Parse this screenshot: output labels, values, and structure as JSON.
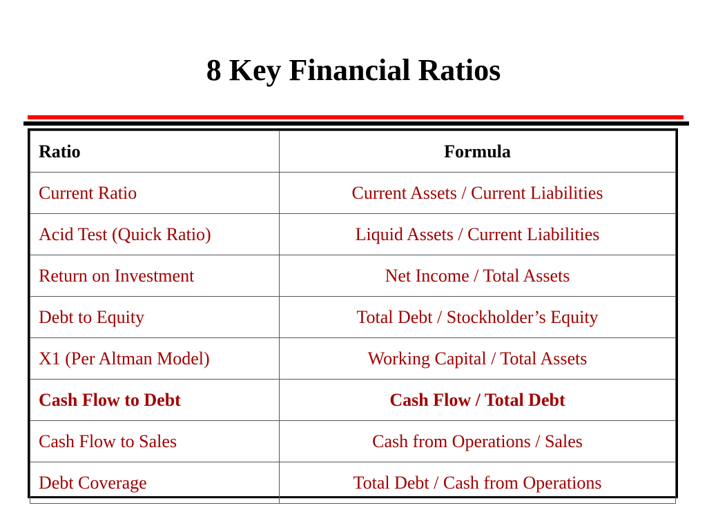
{
  "slide": {
    "title": "8 Key Financial Ratios"
  },
  "colors": {
    "accent_rule": "#ff0000",
    "text_dark_red": "#a00000",
    "header_text": "#000000"
  },
  "table": {
    "headers": {
      "ratio": "Ratio",
      "formula": "Formula"
    },
    "rows": [
      {
        "ratio": "Current Ratio",
        "formula": "Current Assets / Current Liabilities",
        "bold": false
      },
      {
        "ratio": "Acid Test (Quick Ratio)",
        "formula": "Liquid Assets / Current Liabilities",
        "bold": false
      },
      {
        "ratio": "Return on Investment",
        "formula": "Net Income / Total Assets",
        "bold": false
      },
      {
        "ratio": "Debt to Equity",
        "formula": "Total Debt / Stockholder’s Equity",
        "bold": false
      },
      {
        "ratio": "X1 (Per Altman Model)",
        "formula": "Working Capital / Total Assets",
        "bold": false
      },
      {
        "ratio": "Cash Flow to Debt",
        "formula": "Cash Flow / Total Debt",
        "bold": true
      },
      {
        "ratio": "Cash Flow to Sales",
        "formula": "Cash from Operations / Sales",
        "bold": false
      },
      {
        "ratio": "Debt Coverage",
        "formula": "Total Debt / Cash from Operations",
        "bold": false
      }
    ]
  }
}
